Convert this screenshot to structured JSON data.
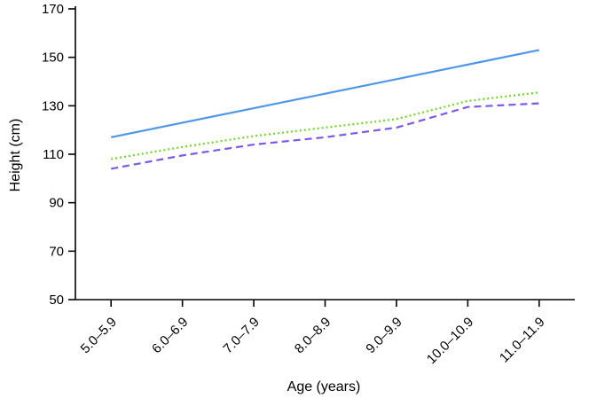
{
  "chart_data": {
    "type": "line",
    "title": "",
    "xlabel": "Age (years)",
    "ylabel": "Height (cm)",
    "categories": [
      "5.0–5.9",
      "6.0–6.9",
      "7.0–7.9",
      "8.0–8.9",
      "9.0–9.9",
      "10.0–10.9",
      "11.0–11.9"
    ],
    "series": [
      {
        "name": "upper-solid-blue",
        "style": "solid",
        "color": "#4f97e6",
        "values": [
          117,
          123,
          129,
          135,
          141,
          147,
          153
        ]
      },
      {
        "name": "middle-dotted-green",
        "style": "dotted",
        "color": "#6fd527",
        "values": [
          108,
          113,
          117.5,
          121,
          124.5,
          132,
          135.5
        ]
      },
      {
        "name": "lower-dashed-purple",
        "style": "dashed",
        "color": "#7a5be8",
        "values": [
          104,
          109.5,
          114,
          117,
          121,
          129.5,
          131
        ]
      }
    ],
    "ylim": [
      50,
      170
    ],
    "yticks": [
      50,
      70,
      90,
      110,
      130,
      150,
      170
    ],
    "grid": "off",
    "legend": "none"
  }
}
